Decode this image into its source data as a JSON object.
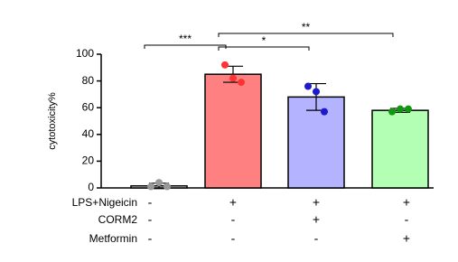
{
  "chart_data": {
    "type": "bar",
    "y_label": "cytotoxicity%",
    "categories": [
      null,
      null,
      null,
      null
    ],
    "values": [
      1.5,
      85,
      68,
      58
    ],
    "errors": [
      2,
      6,
      10,
      1.5
    ],
    "points": [
      [
        1,
        4,
        1
      ],
      [
        92,
        82,
        79
      ],
      [
        76,
        72,
        57
      ],
      [
        57,
        59,
        59
      ]
    ],
    "colors": [
      "#ffffff",
      "#ff8080",
      "#b3b3ff",
      "#b3ffb3"
    ],
    "point_colors": [
      "#999999",
      "#ff3333",
      "#1a1acc",
      "#109910"
    ],
    "ylim": [
      0,
      100
    ],
    "yticks": [
      0,
      20,
      40,
      60,
      80,
      100
    ],
    "grid": false,
    "annotations": [
      {
        "text": "***",
        "between": [
          0,
          1
        ]
      },
      {
        "text": "*",
        "between": [
          1,
          2
        ]
      },
      {
        "text": "**",
        "between": [
          1,
          3
        ]
      }
    ],
    "treatments": [
      {
        "name": "LPS+Nigeicin",
        "signs": [
          "-",
          "+",
          "+",
          "+"
        ]
      },
      {
        "name": "CORM2",
        "signs": [
          "-",
          "-",
          "+",
          "-"
        ]
      },
      {
        "name": "Metformin",
        "signs": [
          "-",
          "-",
          "-",
          "+"
        ]
      }
    ]
  }
}
